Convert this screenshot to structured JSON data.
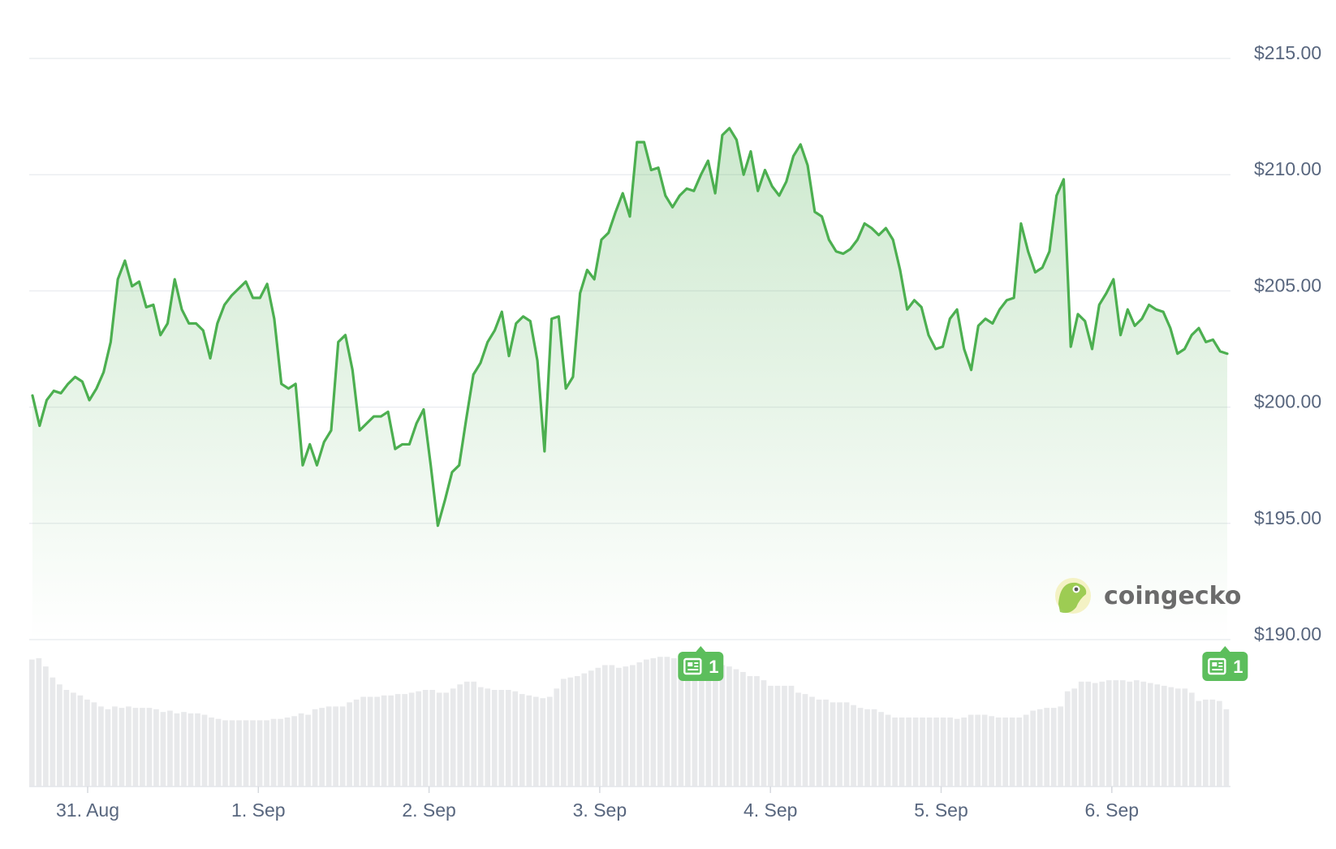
{
  "chart_data": {
    "type": "area",
    "y_tick_labels": [
      "$215.00",
      "$210.00",
      "$205.00",
      "$200.00",
      "$195.00",
      "$190.00"
    ],
    "y_ticks": [
      215,
      210,
      205,
      200,
      195,
      190
    ],
    "ylim": [
      190,
      215
    ],
    "x_tick_labels": [
      "31. Aug",
      "1. Sep",
      "2. Sep",
      "3. Sep",
      "4. Sep",
      "5. Sep",
      "6. Sep"
    ],
    "grid": true,
    "line_color": "#4caf50",
    "fill_color": "#4caf50",
    "volume_color": "#e8e9eb",
    "series": [
      {
        "values": [
          200.5,
          199.2,
          200.3,
          200.7,
          200.6,
          201.0,
          201.3,
          201.1,
          200.3,
          200.8,
          201.5,
          202.8,
          205.5,
          206.3,
          205.2,
          205.4,
          204.3,
          204.4,
          203.1,
          203.6,
          205.5,
          204.2,
          203.6,
          203.6,
          203.3,
          202.1,
          203.6,
          204.4,
          204.8,
          205.1,
          205.4,
          204.7,
          204.7,
          205.3,
          203.8,
          201.0,
          200.8,
          201.0,
          197.5,
          198.4,
          197.5,
          198.5,
          199.0,
          202.8,
          203.1,
          201.6,
          199.0,
          199.3,
          199.6,
          199.6,
          199.8,
          198.2,
          198.4,
          198.4,
          199.3,
          199.9,
          197.5,
          194.9,
          196.0,
          197.2,
          197.5,
          199.5,
          201.4,
          201.9,
          202.8,
          203.3,
          204.1,
          202.2,
          203.6,
          203.9,
          203.7,
          202.0,
          198.1,
          203.8,
          203.9,
          200.8,
          201.3,
          204.9,
          205.9,
          205.5,
          207.2,
          207.5,
          208.4,
          209.2,
          208.2,
          211.4,
          211.4,
          210.2,
          210.3,
          209.1,
          208.6,
          209.1,
          209.4,
          209.3,
          210.0,
          210.6,
          209.2,
          211.7,
          212.0,
          211.5,
          210.0,
          211.0,
          209.3,
          210.2,
          209.5,
          209.1,
          209.7,
          210.8,
          211.3,
          210.4,
          208.4,
          208.2,
          207.2,
          206.7,
          206.6,
          206.8,
          207.2,
          207.9,
          207.7,
          207.4,
          207.7,
          207.2,
          205.9,
          204.2,
          204.6,
          204.3,
          203.1,
          202.5,
          202.6,
          203.8,
          204.2,
          202.5,
          201.6,
          203.5,
          203.8,
          203.6,
          204.2,
          204.6,
          204.7,
          207.9,
          206.7,
          205.8,
          206.0,
          206.7,
          209.1,
          209.8,
          202.6,
          204.0,
          203.7,
          202.5,
          204.4,
          204.9,
          205.5,
          203.1,
          204.2,
          203.5,
          203.8,
          204.4,
          204.2,
          204.1,
          203.4,
          202.3,
          202.5,
          203.1,
          203.4,
          202.8,
          202.9,
          202.4,
          202.3
        ]
      }
    ],
    "volume_relative": [
      0.92,
      0.93,
      0.87,
      0.79,
      0.74,
      0.7,
      0.68,
      0.66,
      0.63,
      0.61,
      0.58,
      0.56,
      0.58,
      0.57,
      0.58,
      0.57,
      0.57,
      0.57,
      0.56,
      0.54,
      0.55,
      0.53,
      0.54,
      0.53,
      0.53,
      0.52,
      0.5,
      0.49,
      0.48,
      0.48,
      0.48,
      0.48,
      0.48,
      0.48,
      0.48,
      0.49,
      0.49,
      0.5,
      0.51,
      0.53,
      0.52,
      0.56,
      0.57,
      0.58,
      0.58,
      0.58,
      0.61,
      0.63,
      0.65,
      0.65,
      0.65,
      0.66,
      0.66,
      0.67,
      0.67,
      0.68,
      0.69,
      0.7,
      0.7,
      0.68,
      0.68,
      0.71,
      0.74,
      0.76,
      0.76,
      0.72,
      0.71,
      0.7,
      0.7,
      0.7,
      0.69,
      0.67,
      0.66,
      0.65,
      0.64,
      0.65,
      0.71,
      0.78,
      0.79,
      0.8,
      0.82,
      0.84,
      0.86,
      0.88,
      0.88,
      0.86,
      0.87,
      0.88,
      0.9,
      0.92,
      0.93,
      0.94,
      0.94,
      0.93,
      0.93,
      0.92,
      0.9,
      0.89,
      0.9,
      0.91,
      0.88,
      0.87,
      0.85,
      0.83,
      0.8,
      0.8,
      0.77,
      0.73,
      0.73,
      0.73,
      0.73,
      0.68,
      0.67,
      0.65,
      0.63,
      0.63,
      0.61,
      0.61,
      0.61,
      0.59,
      0.57,
      0.56,
      0.56,
      0.54,
      0.52,
      0.5,
      0.5,
      0.5,
      0.5,
      0.5,
      0.5,
      0.5,
      0.5,
      0.5,
      0.49,
      0.5,
      0.52,
      0.52,
      0.52,
      0.51,
      0.5,
      0.5,
      0.5,
      0.5,
      0.52,
      0.55,
      0.56,
      0.57,
      0.57,
      0.58,
      0.69,
      0.71,
      0.76,
      0.76,
      0.75,
      0.76,
      0.77,
      0.77,
      0.77,
      0.76,
      0.77,
      0.76,
      0.75,
      0.74,
      0.73,
      0.72,
      0.71,
      0.71,
      0.68,
      0.62,
      0.63,
      0.63,
      0.62,
      0.56
    ]
  },
  "news_markers": [
    {
      "label": "1",
      "position": 0.559,
      "icon": "newspaper-icon"
    },
    {
      "label": "1",
      "position": 0.9955,
      "icon": "newspaper-icon"
    }
  ],
  "watermark": {
    "text": "coingecko",
    "icon": "coingecko-logo-icon"
  }
}
